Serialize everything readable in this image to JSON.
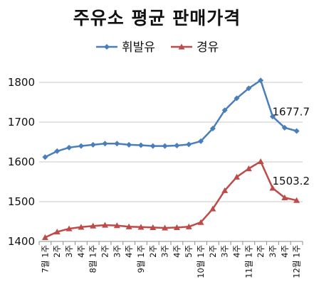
{
  "chart_data": {
    "type": "line",
    "title": "주유소 평균 판매가격",
    "xlabel": "",
    "ylabel": "",
    "ylim": [
      1400,
      1800
    ],
    "yticks": [
      1400,
      1500,
      1600,
      1700,
      1800
    ],
    "grid": "horizontal",
    "legend_position": "top",
    "categories": [
      "7월 1주",
      "2주",
      "3주",
      "4주",
      "8월 1주",
      "2주",
      "3주",
      "4주",
      "9월 1주",
      "2주",
      "3주",
      "4주",
      "5주",
      "10월 1주",
      "2주",
      "3주",
      "4주",
      "11월 1주",
      "2주",
      "3주",
      "4주",
      "12월 1주"
    ],
    "series": [
      {
        "name": "휘발유",
        "color": "#4a7ebb",
        "marker": "diamond",
        "values": [
          1612,
          1627,
          1636,
          1640,
          1643,
          1646,
          1646,
          1643,
          1642,
          1640,
          1640,
          1641,
          1644,
          1652,
          1684,
          1730,
          1760,
          1785,
          1805,
          1714,
          1686,
          1677.7
        ]
      },
      {
        "name": "경유",
        "color": "#be4b48",
        "marker": "triangle",
        "values": [
          1410,
          1424,
          1432,
          1436,
          1439,
          1441,
          1440,
          1437,
          1436,
          1435,
          1434,
          1435,
          1437,
          1448,
          1482,
          1528,
          1562,
          1583,
          1601,
          1534,
          1510,
          1503.2
        ]
      }
    ],
    "data_labels": [
      "1677.7",
      "1503.2"
    ]
  }
}
